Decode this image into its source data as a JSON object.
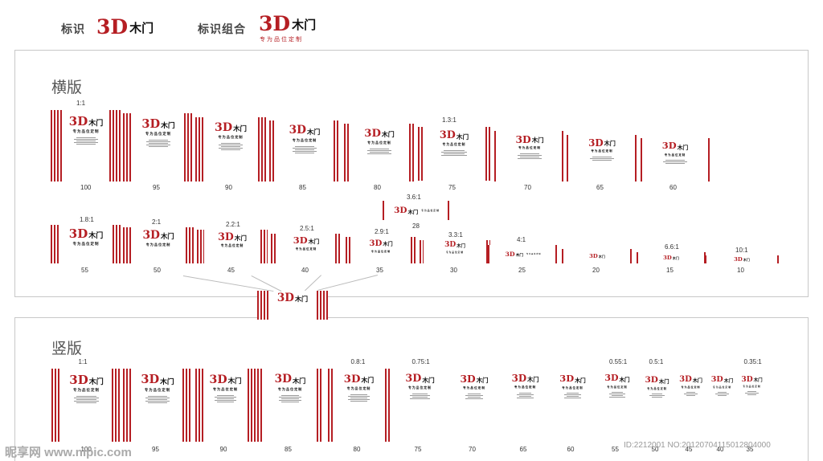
{
  "header": {
    "logo_label": "标识",
    "combo_label": "标识组合",
    "logo_3d": "3D",
    "logo_door": "木门",
    "logo_tagline": "专为品位定制"
  },
  "horizontal": {
    "title": "横版",
    "row1": [
      {
        "size": "100",
        "ratio": "1:1"
      },
      {
        "size": "95",
        "ratio": ""
      },
      {
        "size": "90",
        "ratio": ""
      },
      {
        "size": "85",
        "ratio": ""
      },
      {
        "size": "80",
        "ratio": ""
      },
      {
        "size": "75",
        "ratio": "1.3:1"
      },
      {
        "size": "70",
        "ratio": ""
      },
      {
        "size": "65",
        "ratio": ""
      },
      {
        "size": "60",
        "ratio": ""
      }
    ],
    "extra": {
      "size": "28",
      "ratio": "3.6:1"
    },
    "row2": [
      {
        "size": "55",
        "ratio": "1.8:1"
      },
      {
        "size": "50",
        "ratio": "2:1"
      },
      {
        "size": "45",
        "ratio": "2.2:1"
      },
      {
        "size": "40",
        "ratio": "2.5:1"
      },
      {
        "size": "35",
        "ratio": "2.9:1"
      },
      {
        "size": "30",
        "ratio": "3.3:1"
      },
      {
        "size": "25",
        "ratio": "4:1"
      },
      {
        "size": "20",
        "ratio": ""
      },
      {
        "size": "15",
        "ratio": "6.6:1"
      },
      {
        "size": "10",
        "ratio": "10:1"
      }
    ]
  },
  "vertical": {
    "title": "竖版",
    "items": [
      {
        "size": "100",
        "ratio": "1:1"
      },
      {
        "size": "95",
        "ratio": ""
      },
      {
        "size": "90",
        "ratio": ""
      },
      {
        "size": "85",
        "ratio": ""
      },
      {
        "size": "80",
        "ratio": "0.8:1"
      },
      {
        "size": "75",
        "ratio": "0.75:1"
      },
      {
        "size": "70",
        "ratio": ""
      },
      {
        "size": "65",
        "ratio": ""
      },
      {
        "size": "60",
        "ratio": ""
      },
      {
        "size": "55",
        "ratio": "0.55:1"
      },
      {
        "size": "50",
        "ratio": "0.5:1"
      },
      {
        "size": "45",
        "ratio": ""
      },
      {
        "size": "40",
        "ratio": ""
      },
      {
        "size": "35",
        "ratio": "0.35:1"
      }
    ]
  },
  "watermark": {
    "left": "昵享网 www.nipic.com",
    "right": "ID:2212001 NO:20120704115012804000"
  },
  "colors": {
    "brand_red": "#b51e23",
    "panel_border": "#c8c8c8"
  }
}
